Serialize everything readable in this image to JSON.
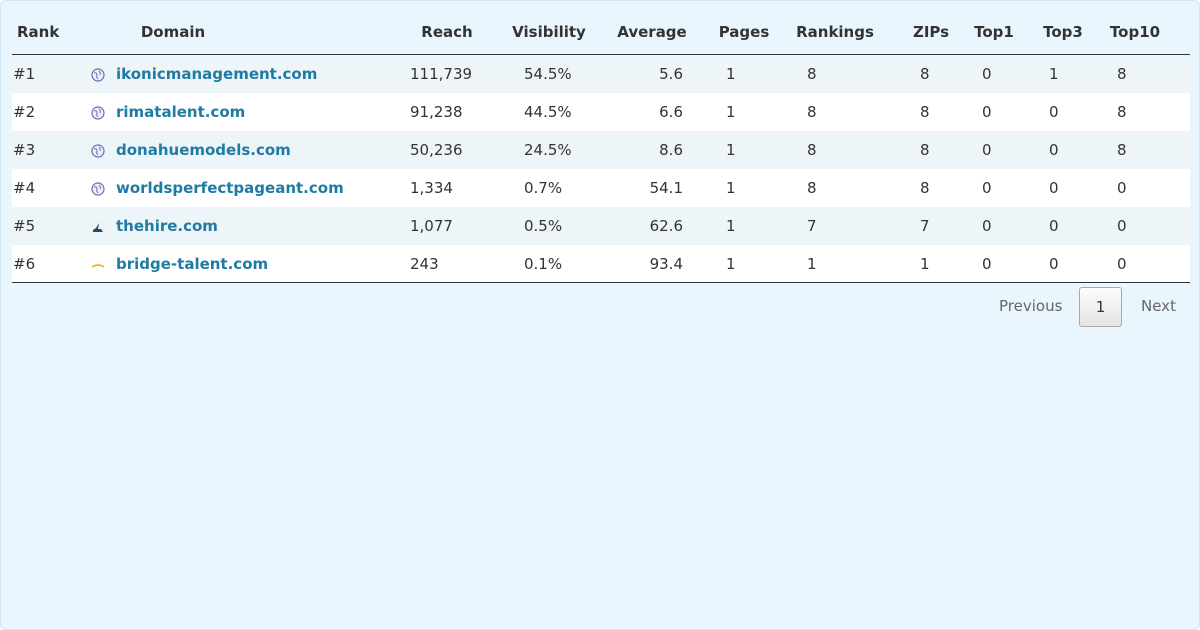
{
  "table": {
    "headers": [
      "Rank",
      "Domain",
      "Reach",
      "Visibility",
      "Average",
      "Pages",
      "Rankings",
      "ZIPs",
      "Top1",
      "Top3",
      "Top10"
    ],
    "rows": [
      [
        "#1",
        "ikonicmanagement.com",
        "111,739",
        "54.5%",
        "5.6",
        "1",
        "8",
        "8",
        "0",
        "1",
        "8"
      ],
      [
        "#2",
        "rimatalent.com",
        "91,238",
        "44.5%",
        "6.6",
        "1",
        "8",
        "8",
        "0",
        "0",
        "8"
      ],
      [
        "#3",
        "donahuemodels.com",
        "50,236",
        "24.5%",
        "8.6",
        "1",
        "8",
        "8",
        "0",
        "0",
        "8"
      ],
      [
        "#4",
        "worldsperfectpageant.com",
        "1,334",
        "0.7%",
        "54.1",
        "1",
        "8",
        "8",
        "0",
        "0",
        "0"
      ],
      [
        "#5",
        "thehire.com",
        "1,077",
        "0.5%",
        "62.6",
        "1",
        "7",
        "7",
        "0",
        "0",
        "0"
      ],
      [
        "#6",
        "bridge-talent.com",
        "243",
        "0.1%",
        "93.4",
        "1",
        "1",
        "1",
        "0",
        "0",
        "0"
      ]
    ]
  },
  "pagination": {
    "previous": "Previous",
    "current": "1",
    "next": "Next"
  }
}
